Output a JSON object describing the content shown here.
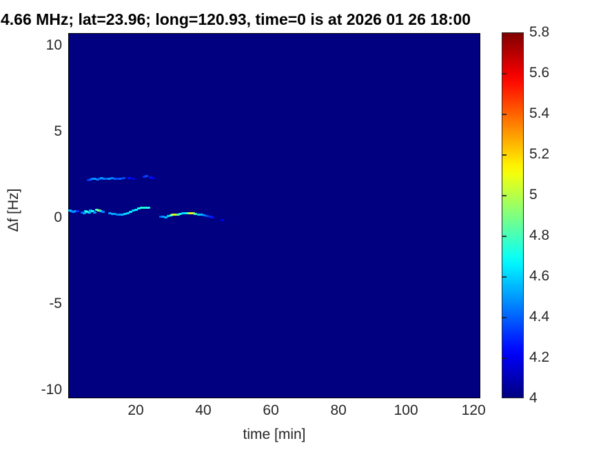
{
  "chart_data": {
    "type": "heatmap",
    "title": "4.66 MHz;  lat=23.96; long=120.93, time=0 is at 2026 01 26 18:00",
    "xlabel": "time [min]",
    "ylabel": "Δf [Hz]",
    "x_range": [
      0,
      122
    ],
    "y_range": [
      -10.5,
      10.7
    ],
    "x_ticks": [
      20,
      40,
      60,
      80,
      100,
      120
    ],
    "y_ticks": [
      10,
      5,
      0,
      -5,
      -10
    ],
    "grid": false,
    "legend": "none",
    "colormap": "jet",
    "background_value": 4,
    "colorbar": {
      "min": 4,
      "max": 5.8,
      "ticks": [
        5.8,
        5.6,
        5.4,
        5.2,
        5,
        4.8,
        4.6,
        4.4,
        4.2,
        4
      ],
      "position": "right"
    },
    "series": [
      {
        "name": "main-trace-early",
        "points": [
          [
            0.3,
            0.45,
            4.55
          ],
          [
            0.8,
            0.42,
            4.5
          ],
          [
            1.3,
            0.36,
            4.45
          ],
          [
            1.9,
            0.42,
            4.5
          ],
          [
            2.5,
            0.4,
            4.3
          ],
          [
            4.0,
            0.34,
            4.4
          ],
          [
            4.6,
            0.3,
            4.5
          ],
          [
            5.1,
            0.42,
            4.65
          ],
          [
            5.5,
            0.38,
            4.75
          ],
          [
            6.0,
            0.32,
            4.6
          ],
          [
            6.5,
            0.44,
            4.55
          ],
          [
            7.1,
            0.4,
            4.7
          ],
          [
            7.7,
            0.34,
            4.5
          ],
          [
            8.3,
            0.47,
            4.8
          ],
          [
            8.9,
            0.44,
            4.95
          ],
          [
            9.4,
            0.4,
            4.6
          ],
          [
            10.0,
            0.36,
            4.45
          ],
          [
            12.2,
            0.3,
            4.5
          ],
          [
            12.9,
            0.26,
            4.55
          ],
          [
            13.6,
            0.23,
            4.5
          ],
          [
            14.3,
            0.2,
            4.45
          ],
          [
            15.0,
            0.2,
            4.5
          ],
          [
            15.8,
            0.22,
            4.55
          ],
          [
            16.6,
            0.25,
            4.6
          ],
          [
            17.4,
            0.3,
            4.6
          ],
          [
            18.2,
            0.36,
            4.65
          ],
          [
            19.0,
            0.43,
            4.6
          ],
          [
            19.8,
            0.5,
            4.65
          ],
          [
            20.7,
            0.56,
            4.7
          ],
          [
            21.5,
            0.6,
            4.75
          ],
          [
            22.3,
            0.62,
            4.7
          ],
          [
            23.1,
            0.62,
            4.8
          ],
          [
            23.6,
            0.6,
            4.7
          ]
        ]
      },
      {
        "name": "upper-trace",
        "points": [
          [
            5.8,
            2.2,
            4.3
          ],
          [
            6.4,
            2.24,
            4.4
          ],
          [
            7.0,
            2.28,
            4.45
          ],
          [
            7.7,
            2.3,
            4.5
          ],
          [
            8.4,
            2.26,
            4.45
          ],
          [
            9.0,
            2.3,
            4.4
          ],
          [
            9.7,
            2.32,
            4.5
          ],
          [
            10.4,
            2.3,
            4.45
          ],
          [
            11.2,
            2.28,
            4.4
          ],
          [
            12.0,
            2.3,
            4.5
          ],
          [
            12.8,
            2.32,
            4.45
          ],
          [
            13.6,
            2.3,
            4.4
          ],
          [
            14.4,
            2.28,
            4.35
          ],
          [
            15.3,
            2.3,
            4.4
          ],
          [
            16.2,
            2.32,
            4.35
          ],
          [
            17.8,
            2.34,
            4.25
          ],
          [
            19.0,
            2.3,
            4.2
          ],
          [
            22.3,
            2.42,
            4.3
          ],
          [
            23.0,
            2.45,
            4.35
          ],
          [
            24.2,
            2.36,
            4.25
          ],
          [
            24.9,
            2.34,
            4.2
          ]
        ]
      },
      {
        "name": "main-trace-late",
        "points": [
          [
            27.2,
            0.08,
            4.4
          ],
          [
            27.9,
            0.1,
            4.5
          ],
          [
            28.6,
            0.06,
            4.55
          ],
          [
            29.4,
            0.12,
            4.6
          ],
          [
            30.2,
            0.16,
            4.8
          ],
          [
            30.9,
            0.2,
            5.0
          ],
          [
            31.6,
            0.22,
            5.1
          ],
          [
            32.3,
            0.2,
            4.9
          ],
          [
            33.0,
            0.24,
            4.7
          ],
          [
            33.8,
            0.28,
            4.6
          ],
          [
            34.5,
            0.3,
            4.65
          ],
          [
            35.4,
            0.28,
            4.9
          ],
          [
            36.1,
            0.3,
            5.15
          ],
          [
            36.8,
            0.28,
            5.05
          ],
          [
            37.5,
            0.26,
            4.8
          ],
          [
            38.4,
            0.22,
            4.6
          ],
          [
            39.2,
            0.2,
            4.55
          ],
          [
            40.1,
            0.16,
            4.45
          ],
          [
            41.0,
            0.14,
            4.35
          ],
          [
            41.9,
            0.1,
            4.3
          ],
          [
            42.6,
            0.06,
            4.25
          ]
        ]
      },
      {
        "name": "isolated-speck",
        "points": [
          [
            45.4,
            -0.12,
            4.2
          ]
        ]
      }
    ]
  }
}
